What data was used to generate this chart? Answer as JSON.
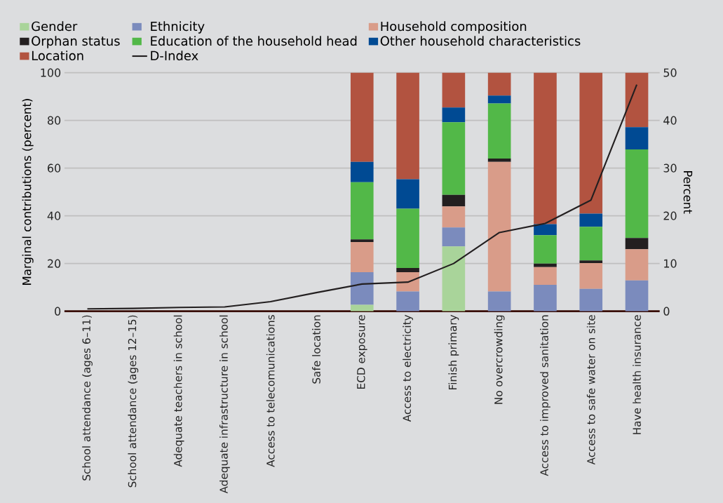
{
  "chart_data": {
    "type": "bar",
    "stacked": true,
    "ylabel": "Marginal contributions (percent)",
    "y2label": "Percent",
    "categories": [
      "School attendance (ages 6–11)",
      "School attendance (ages 12–15)",
      "Adequate teachers in school",
      "Adequate infrastructure in school",
      "Access to telecomunications",
      "Safe location",
      "ECD exposure",
      "Access to electricity",
      "Finish primary",
      "No overcrowding",
      "Access to improved sanitation",
      "Access to safe water on site",
      "Have health insurance"
    ],
    "ylim": [
      0,
      100
    ],
    "yticks": [
      0,
      20,
      40,
      60,
      80,
      100
    ],
    "y2lim": [
      0,
      50
    ],
    "y2ticks": [
      0,
      10,
      20,
      30,
      40,
      50
    ],
    "grid": "y",
    "legend": "top",
    "series": [
      {
        "name": "Gender",
        "color": "#a9d49a",
        "values": [
          null,
          null,
          null,
          null,
          null,
          null,
          2.7,
          0,
          27.2,
          0,
          0,
          0,
          0
        ]
      },
      {
        "name": "Ethnicity",
        "color": "#7b8bbd",
        "values": [
          null,
          null,
          null,
          null,
          null,
          null,
          13.7,
          8.3,
          7.9,
          8.3,
          11.1,
          9.4,
          12.9
        ]
      },
      {
        "name": "Household composition",
        "color": "#d99c89",
        "values": [
          null,
          null,
          null,
          null,
          null,
          null,
          12.6,
          8.1,
          8.8,
          54.3,
          7.4,
          10.8,
          13.1
        ]
      },
      {
        "name": "Orphan status",
        "color": "#231f20",
        "values": [
          null,
          null,
          null,
          null,
          null,
          null,
          1.1,
          1.7,
          4.9,
          1.4,
          1.5,
          1.1,
          4.7
        ]
      },
      {
        "name": "Education of the household head",
        "color": "#52b848",
        "values": [
          null,
          null,
          null,
          null,
          null,
          null,
          24.0,
          24.9,
          30.4,
          23.1,
          11.9,
          14.1,
          37.1
        ]
      },
      {
        "name": "Other household characteristics",
        "color": "#004a93",
        "values": [
          null,
          null,
          null,
          null,
          null,
          null,
          8.5,
          12.3,
          6.2,
          3.3,
          4.6,
          5.5,
          9.4
        ]
      },
      {
        "name": "Location",
        "color": "#b25340",
        "values": [
          null,
          null,
          null,
          null,
          null,
          null,
          37.4,
          44.7,
          14.6,
          9.6,
          63.5,
          59.1,
          22.8
        ]
      },
      {
        "name": "D-Index",
        "color": "#231f20",
        "type": "line",
        "axis": "y2",
        "values": [
          0.5,
          0.6,
          0.8,
          0.9,
          2.0,
          3.9,
          5.7,
          6.1,
          10.0,
          16.5,
          18.4,
          23.3,
          47.5
        ]
      }
    ]
  }
}
